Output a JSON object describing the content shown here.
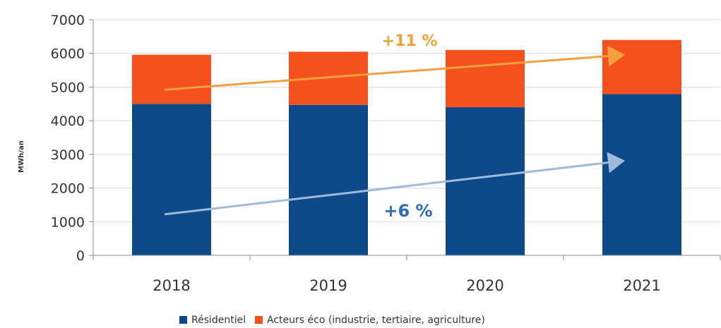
{
  "chart_data": {
    "type": "bar",
    "stacked": true,
    "categories": [
      "2018",
      "2019",
      "2020",
      "2021"
    ],
    "series": [
      {
        "name": "Résidentiel",
        "color": "#0e4a8a",
        "values": [
          4500,
          4470,
          4400,
          4790
        ]
      },
      {
        "name": "Acteurs éco (industrie, tertiaire, agriculture)",
        "color": "#f4511e",
        "values": [
          1460,
          1580,
          1700,
          1610
        ]
      }
    ],
    "ylabel": "MWh/an",
    "ylim": [
      0,
      7000
    ],
    "yticks": [
      0,
      1000,
      2000,
      3000,
      4000,
      5000,
      6000,
      7000
    ],
    "grid": true,
    "legend_position": "bottom",
    "annotations": [
      {
        "text": "+11 %",
        "color": "#f4a03c",
        "from": [
          "2018",
          4920
        ],
        "to": [
          "2021",
          5950
        ]
      },
      {
        "text": "+6 %",
        "color": "#9fbbd9",
        "text_color": "#2b6cb5",
        "from": [
          "2018",
          1220
        ],
        "to": [
          "2021",
          2800
        ]
      }
    ]
  }
}
